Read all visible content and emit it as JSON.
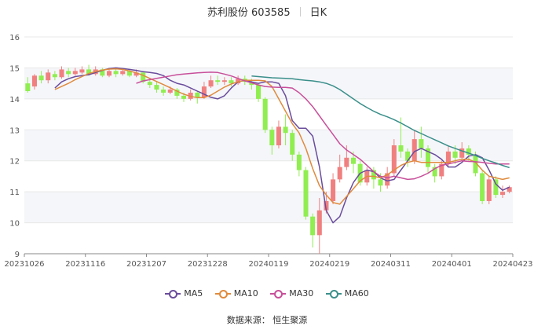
{
  "header": {
    "stock": "苏利股份 603585",
    "period": "日K"
  },
  "footer": {
    "source": "数据来源： 恒生聚源"
  },
  "colors": {
    "up": "#f08080",
    "down": "#90ee50",
    "grid": "#e8e8e8",
    "band": "#f5f6fa"
  },
  "chart_data": {
    "type": "candlestick",
    "title": "苏利股份 603585 日K",
    "ylim": [
      9,
      16
    ],
    "yticks": [
      9,
      10,
      11,
      12,
      13,
      14,
      15,
      16
    ],
    "xticks": [
      "20231026",
      "20231116",
      "20231207",
      "20231228",
      "20240119",
      "20240219",
      "20240311",
      "20240401",
      "20240423"
    ],
    "legend_position": "bottom",
    "series": [
      {
        "name": "MA5",
        "color": "#6a4c9c",
        "values": [
          14.35,
          14.55,
          14.65,
          14.72,
          14.75,
          14.78,
          14.85,
          14.92,
          14.98,
          15.0,
          14.98,
          14.95,
          14.92,
          14.88,
          14.85,
          14.82,
          14.75,
          14.6,
          14.5,
          14.45,
          14.35,
          14.25,
          14.15,
          14.05,
          14.0,
          14.1,
          14.35,
          14.55,
          14.6,
          14.55,
          14.5,
          14.55,
          14.55,
          14.5,
          14.1,
          13.3,
          13.05,
          13.05,
          12.8,
          11.8,
          10.4,
          10.0,
          10.2,
          10.8,
          11.3,
          11.6,
          11.7,
          11.65,
          11.45,
          11.35,
          11.4,
          11.7,
          12.0,
          12.3,
          12.4,
          12.3,
          12.2,
          12.05,
          11.8,
          11.8,
          11.95,
          12.15,
          12.2,
          12.1,
          11.7,
          11.25,
          11.05,
          11.15
        ]
      },
      {
        "name": "MA10",
        "color": "#e08a3c",
        "values": [
          14.3,
          14.4,
          14.5,
          14.62,
          14.72,
          14.82,
          14.88,
          14.93,
          14.96,
          14.97,
          14.95,
          14.9,
          14.84,
          14.76,
          14.66,
          14.56,
          14.46,
          14.36,
          14.25,
          14.15,
          14.08,
          14.04,
          14.04,
          14.12,
          14.25,
          14.38,
          14.48,
          14.55,
          14.6,
          14.6,
          14.6,
          14.58,
          14.4,
          14.0,
          13.6,
          13.2,
          12.9,
          12.4,
          11.75,
          11.2,
          10.9,
          10.65,
          10.6,
          10.85,
          11.1,
          11.35,
          11.5,
          11.5,
          11.45,
          11.55,
          11.7,
          11.85,
          11.95,
          12.0,
          11.95,
          11.95,
          11.95,
          11.95,
          11.95,
          12.0,
          12.05,
          12.05,
          11.95,
          11.7,
          11.5,
          11.45,
          11.4,
          11.45
        ]
      },
      {
        "name": "MA30",
        "color": "#c84f9a",
        "values": [
          14.5,
          14.58,
          14.62,
          14.66,
          14.7,
          14.74,
          14.78,
          14.8,
          14.82,
          14.84,
          14.85,
          14.86,
          14.85,
          14.8,
          14.74,
          14.66,
          14.58,
          14.52,
          14.45,
          14.4,
          14.38,
          14.37,
          14.37,
          14.35,
          14.2,
          14.0,
          13.75,
          13.45,
          13.15,
          12.85,
          12.55,
          12.35,
          12.2,
          12.05,
          11.85,
          11.65,
          11.5,
          11.45,
          11.5,
          11.45,
          11.4,
          11.42,
          11.5,
          11.6,
          11.75,
          11.85,
          11.9,
          11.95,
          12.0,
          11.98,
          11.97,
          11.95,
          11.92,
          11.9,
          11.9,
          11.9
        ]
      },
      {
        "name": "MA60",
        "color": "#3a8f8a",
        "values": [
          14.74,
          14.72,
          14.7,
          14.68,
          14.67,
          14.66,
          14.65,
          14.62,
          14.6,
          14.58,
          14.55,
          14.5,
          14.42,
          14.3,
          14.15,
          14.0,
          13.85,
          13.72,
          13.6,
          13.5,
          13.42,
          13.33,
          13.22,
          13.1,
          12.98,
          12.88,
          12.78,
          12.68,
          12.58,
          12.48,
          12.4,
          12.32,
          12.25,
          12.17,
          12.08,
          12.0,
          11.93,
          11.85,
          11.78
        ]
      }
    ]
  },
  "candles": [
    [
      14.5,
      14.25,
      14.7,
      14.2
    ],
    [
      14.4,
      14.75,
      14.8,
      14.3
    ],
    [
      14.75,
      14.6,
      14.9,
      14.5
    ],
    [
      14.6,
      14.85,
      14.95,
      14.5
    ],
    [
      14.8,
      14.7,
      14.9,
      14.6
    ],
    [
      14.7,
      14.95,
      15.05,
      14.65
    ],
    [
      14.9,
      14.8,
      15.0,
      14.7
    ],
    [
      14.8,
      14.9,
      15.0,
      14.75
    ],
    [
      14.85,
      14.95,
      15.05,
      14.8
    ],
    [
      14.95,
      14.8,
      15.1,
      14.75
    ],
    [
      14.8,
      14.95,
      15.05,
      14.75
    ],
    [
      14.95,
      14.75,
      15.0,
      14.7
    ],
    [
      14.75,
      14.9,
      15.0,
      14.7
    ],
    [
      14.9,
      14.8,
      14.95,
      14.7
    ],
    [
      14.8,
      14.9,
      15.0,
      14.75
    ],
    [
      14.9,
      14.75,
      14.95,
      14.7
    ],
    [
      14.75,
      14.85,
      14.95,
      14.7
    ],
    [
      14.85,
      14.55,
      14.9,
      14.5
    ],
    [
      14.55,
      14.45,
      14.65,
      14.35
    ],
    [
      14.45,
      14.3,
      14.55,
      14.2
    ],
    [
      14.3,
      14.2,
      14.4,
      14.1
    ],
    [
      14.2,
      14.3,
      14.4,
      14.15
    ],
    [
      14.3,
      14.1,
      14.35,
      14.0
    ],
    [
      14.1,
      14.0,
      14.2,
      13.9
    ],
    [
      14.0,
      14.2,
      14.3,
      13.95
    ],
    [
      14.2,
      14.05,
      14.25,
      13.85
    ],
    [
      14.05,
      14.4,
      14.55,
      14.0
    ],
    [
      14.4,
      14.6,
      14.75,
      14.35
    ],
    [
      14.6,
      14.55,
      14.75,
      14.45
    ],
    [
      14.55,
      14.6,
      14.7,
      14.45
    ],
    [
      14.6,
      14.5,
      14.7,
      14.4
    ],
    [
      14.5,
      14.65,
      14.75,
      14.45
    ],
    [
      14.65,
      14.55,
      14.75,
      14.45
    ],
    [
      14.55,
      14.45,
      14.65,
      14.3
    ],
    [
      14.45,
      14.0,
      14.5,
      13.9
    ],
    [
      14.0,
      13.0,
      14.05,
      12.9
    ],
    [
      13.0,
      12.5,
      13.1,
      12.2
    ],
    [
      12.5,
      13.1,
      13.3,
      12.4
    ],
    [
      13.1,
      12.9,
      13.5,
      12.5
    ],
    [
      12.9,
      12.2,
      13.0,
      12.0
    ],
    [
      12.2,
      11.7,
      12.3,
      11.5
    ],
    [
      11.7,
      10.2,
      11.8,
      10.1
    ],
    [
      10.2,
      9.6,
      10.3,
      9.2
    ],
    [
      9.6,
      10.4,
      10.8,
      9.0
    ],
    [
      10.4,
      10.7,
      11.0,
      10.3
    ],
    [
      10.7,
      11.4,
      11.6,
      10.6
    ],
    [
      11.4,
      11.8,
      12.2,
      11.3
    ],
    [
      11.8,
      12.1,
      12.5,
      11.7
    ],
    [
      12.1,
      11.9,
      12.3,
      11.6
    ],
    [
      11.9,
      11.3,
      12.0,
      11.2
    ],
    [
      11.3,
      11.7,
      11.8,
      11.2
    ],
    [
      11.7,
      11.4,
      11.8,
      11.1
    ],
    [
      11.4,
      11.2,
      11.6,
      11.0
    ],
    [
      11.2,
      11.6,
      11.8,
      11.1
    ],
    [
      11.6,
      12.5,
      12.7,
      11.5
    ],
    [
      12.5,
      12.3,
      13.4,
      12.1
    ],
    [
      12.3,
      12.0,
      12.4,
      11.8
    ],
    [
      12.0,
      12.7,
      13.0,
      11.9
    ],
    [
      12.7,
      12.4,
      13.1,
      12.1
    ],
    [
      12.4,
      11.8,
      12.5,
      11.6
    ],
    [
      11.8,
      11.5,
      11.9,
      11.3
    ],
    [
      11.5,
      11.9,
      12.0,
      11.4
    ],
    [
      11.9,
      12.3,
      12.5,
      11.8
    ],
    [
      12.3,
      12.1,
      12.5,
      11.9
    ],
    [
      12.1,
      12.4,
      12.6,
      12.0
    ],
    [
      12.4,
      12.2,
      12.5,
      12.0
    ],
    [
      12.2,
      11.6,
      12.3,
      11.5
    ],
    [
      11.6,
      10.7,
      11.7,
      10.6
    ],
    [
      10.7,
      11.4,
      11.5,
      10.6
    ],
    [
      11.4,
      10.9,
      11.5,
      10.8
    ],
    [
      10.9,
      11.0,
      11.2,
      10.8
    ],
    [
      11.0,
      11.15,
      11.2,
      10.95
    ]
  ]
}
